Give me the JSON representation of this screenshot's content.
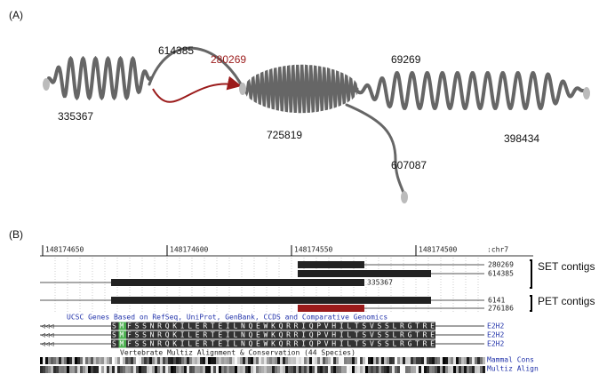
{
  "panel_a": {
    "label": "(A)",
    "contig_labels": [
      "335367",
      "614385",
      "280269",
      "725819",
      "69269",
      "398434",
      "607087"
    ]
  },
  "panel_b": {
    "label": "(B)",
    "ruler": {
      "positions": [
        "148174650",
        "148174600",
        "148174550",
        "148174500"
      ],
      "chrom": ":chr7"
    },
    "set_contigs": {
      "label": "SET contigs",
      "tracks": [
        "280269",
        "614385",
        "335367"
      ]
    },
    "pet_contigs": {
      "label": "PET contigs",
      "tracks": [
        "6141",
        "276186"
      ]
    },
    "genes": {
      "title": "UCSC Genes Based on RefSeq, UniProt, GenBank, CCDS and Comparative Genomics",
      "rows": [
        {
          "sequence": "SMFSSNRQKILERTEILNQEWKQRRIQPVHILTSVSSLRGTRE",
          "name": "E2H2"
        },
        {
          "sequence": "SMFSSNRQKILERTEILNQEWKQRRIQPVHILTSVSSLRGTRE",
          "name": "E2H2"
        },
        {
          "sequence": "SMFSSNRQKILERTEILNQEWKQRRIQPVHILTSVSSLRGTRE",
          "name": "E2H2"
        }
      ]
    },
    "conservation": {
      "title": "Vertebrate Multiz Alignment & Conservation (44 Species)",
      "tracks": [
        "Mammal Cons",
        "Multiz Align"
      ]
    }
  }
}
